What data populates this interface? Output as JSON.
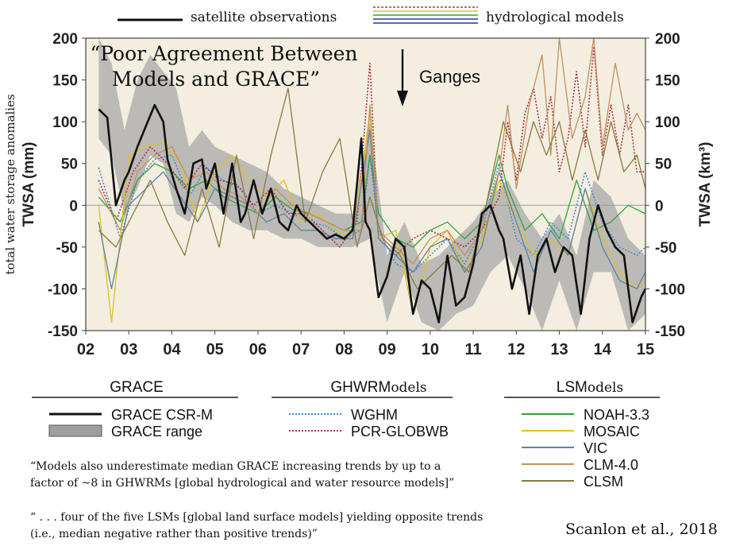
{
  "top_legend": {
    "satellite_label": "satellite observations",
    "models_label": "hydrological models",
    "models_colors": [
      "#b03040",
      "#e0c020",
      "#30a040",
      "#2040a0",
      "#303090"
    ]
  },
  "annotations": {
    "headline_line1": "“Poor Agreement Between",
    "headline_line2": "Models and GRACE”",
    "basin": "Ganges",
    "left_axis_outer": "total water storage anomalies",
    "citation": "Scanlon et al., 2018"
  },
  "legend": {
    "groups": [
      {
        "header": "GRACE",
        "suffix": "",
        "items": [
          {
            "label": "GRACE CSR-M",
            "color": "#111111",
            "style": "solid-thick"
          },
          {
            "label": "GRACE range",
            "color": "#a0a0a0",
            "style": "band"
          }
        ]
      },
      {
        "header": "GHWRM",
        "suffix": "odels",
        "items": [
          {
            "label": "WGHM",
            "color": "#3a8ad0",
            "style": "dotted"
          },
          {
            "label": "PCR-GLOBWB",
            "color": "#b03040",
            "style": "dotted"
          }
        ]
      },
      {
        "header": "LSM",
        "suffix": "odels",
        "items": [
          {
            "label": "NOAH-3.3",
            "color": "#30a040",
            "style": "solid"
          },
          {
            "label": "MOSAIC",
            "color": "#e0c020",
            "style": "solid"
          },
          {
            "label": "VIC",
            "color": "#6080a0",
            "style": "solid"
          },
          {
            "label": "CLM-4.0",
            "color": "#c09060",
            "style": "solid"
          },
          {
            "label": "CLSM",
            "color": "#8a7a40",
            "style": "solid"
          }
        ]
      }
    ]
  },
  "quotes": {
    "q1_line1": "“Models also underestimate median GRACE increasing trends by up to a",
    "q1_line2": "factor of ~8 in GHWRMs [global hydrological and water resource models]”",
    "q2_line1": "“ . . . four of the five LSMs [global land surface models] yielding opposite trends",
    "q2_line2": "(i.e., median negative rather than positive trends)”"
  },
  "chart_data": {
    "type": "line",
    "xlabel_ticks": [
      "02",
      "03",
      "04",
      "05",
      "06",
      "07",
      "08",
      "09",
      "10",
      "11",
      "12",
      "13",
      "14",
      "15"
    ],
    "x_range": [
      2002,
      2015
    ],
    "ylabel": "TWSA (mm)",
    "ylabel_right": "TWSA (km³)",
    "ylim": [
      -150,
      200
    ],
    "yticks": [
      200,
      150,
      100,
      50,
      0,
      -50,
      -100,
      -150
    ],
    "plot_background": "#f3eee0",
    "series": [
      {
        "name": "GRACE CSR-M",
        "color": "#111111",
        "width": 2.6,
        "x": [
          2002.3,
          2002.5,
          2002.7,
          2002.9,
          2003.0,
          2003.2,
          2003.4,
          2003.6,
          2003.8,
          2003.9,
          2004.1,
          2004.3,
          2004.5,
          2004.7,
          2004.8,
          2005.0,
          2005.2,
          2005.4,
          2005.6,
          2005.7,
          2005.9,
          2006.1,
          2006.3,
          2006.5,
          2006.7,
          2006.9,
          2007.0,
          2007.2,
          2007.4,
          2007.6,
          2007.8,
          2008.0,
          2008.2,
          2008.4,
          2008.5,
          2008.6,
          2008.8,
          2009.0,
          2009.2,
          2009.4,
          2009.6,
          2009.8,
          2010.0,
          2010.2,
          2010.4,
          2010.6,
          2010.8,
          2011.0,
          2011.2,
          2011.4,
          2011.6,
          2011.7,
          2011.9,
          2012.1,
          2012.3,
          2012.5,
          2012.7,
          2012.9,
          2013.1,
          2013.3,
          2013.5,
          2013.7,
          2013.9,
          2014.1,
          2014.3,
          2014.5,
          2014.7,
          2014.9,
          2015.0
        ],
        "y": [
          115,
          105,
          0,
          30,
          40,
          70,
          95,
          120,
          100,
          55,
          20,
          -10,
          50,
          55,
          20,
          50,
          -10,
          50,
          -20,
          -10,
          30,
          -10,
          20,
          -20,
          -30,
          0,
          -10,
          -20,
          -30,
          -40,
          -35,
          -40,
          -30,
          80,
          -20,
          -30,
          -110,
          -85,
          -40,
          -50,
          -130,
          -90,
          -100,
          -140,
          -60,
          -120,
          -110,
          -70,
          -10,
          0,
          -30,
          -40,
          -100,
          -60,
          -130,
          -60,
          -40,
          -80,
          -50,
          -60,
          -130,
          -40,
          0,
          -30,
          -50,
          -60,
          -140,
          -110,
          -100
        ]
      },
      {
        "name": "WGHM",
        "color": "#3a8ad0",
        "width": 1.5,
        "dash": "2,2",
        "x": [
          2002.3,
          2002.8,
          2003.2,
          2003.6,
          2004.0,
          2004.4,
          2004.8,
          2005.2,
          2005.6,
          2006.0,
          2006.4,
          2006.8,
          2007.2,
          2007.6,
          2008.0,
          2008.4,
          2008.6,
          2008.8,
          2009.2,
          2009.6,
          2010.0,
          2010.4,
          2010.8,
          2011.2,
          2011.6,
          2012.0,
          2012.4,
          2012.8,
          2013.2,
          2013.6,
          2014.0,
          2014.4,
          2014.8,
          2015.0
        ],
        "y": [
          45,
          -40,
          30,
          55,
          60,
          10,
          45,
          30,
          20,
          -10,
          0,
          -10,
          -20,
          -25,
          -40,
          -30,
          60,
          -30,
          -70,
          -80,
          -60,
          -40,
          -70,
          -30,
          50,
          -40,
          -60,
          -20,
          -40,
          40,
          -20,
          -50,
          -60,
          -50
        ]
      },
      {
        "name": "PCR-GLOBWB",
        "color": "#b03040",
        "width": 1.6,
        "dash": "2,2",
        "x": [
          2002.3,
          2002.7,
          2003.1,
          2003.5,
          2003.9,
          2004.3,
          2004.7,
          2005.1,
          2005.5,
          2005.9,
          2006.3,
          2006.7,
          2007.1,
          2007.5,
          2007.9,
          2008.3,
          2008.6,
          2008.8,
          2009.2,
          2009.6,
          2010.0,
          2010.4,
          2010.8,
          2011.2,
          2011.6,
          2011.8,
          2012.0,
          2012.2,
          2012.4,
          2012.6,
          2012.8,
          2013.0,
          2013.2,
          2013.4,
          2013.6,
          2013.8,
          2014.0,
          2014.2,
          2014.4,
          2014.6,
          2014.8,
          2015.0
        ],
        "y": [
          30,
          -20,
          40,
          70,
          50,
          20,
          50,
          30,
          25,
          0,
          20,
          -10,
          -10,
          -30,
          -50,
          -20,
          170,
          -40,
          -60,
          -40,
          -30,
          -40,
          -50,
          -30,
          10,
          100,
          30,
          110,
          140,
          80,
          130,
          40,
          80,
          160,
          70,
          190,
          60,
          120,
          60,
          120,
          40,
          40
        ]
      },
      {
        "name": "NOAH-3.3",
        "color": "#30a040",
        "width": 1.3,
        "x": [
          2002.3,
          2002.8,
          2003.2,
          2003.6,
          2004.0,
          2004.4,
          2004.8,
          2005.2,
          2005.6,
          2006.0,
          2006.4,
          2006.8,
          2007.2,
          2007.6,
          2008.0,
          2008.4,
          2008.6,
          2008.8,
          2009.2,
          2009.6,
          2010.0,
          2010.4,
          2010.8,
          2011.2,
          2011.6,
          2011.8,
          2012.2,
          2012.6,
          2013.0,
          2013.4,
          2013.8,
          2014.2,
          2014.6,
          2015.0
        ],
        "y": [
          10,
          -20,
          30,
          50,
          40,
          20,
          30,
          10,
          0,
          -10,
          10,
          -5,
          -10,
          -20,
          -30,
          -20,
          60,
          -10,
          -40,
          -50,
          -30,
          -20,
          -40,
          -20,
          60,
          20,
          -30,
          -10,
          -40,
          30,
          -30,
          -20,
          0,
          -10
        ]
      },
      {
        "name": "MOSAIC",
        "color": "#e0c020",
        "width": 1.3,
        "x": [
          2002.3,
          2002.6,
          2003.0,
          2003.4,
          2003.8,
          2004.2,
          2004.6,
          2005.0,
          2005.4,
          2005.8,
          2006.2,
          2006.6,
          2007.0,
          2007.4,
          2007.8,
          2008.2,
          2008.6,
          2008.8,
          2009.2,
          2009.6,
          2010.0,
          2010.4,
          2010.8,
          2011.2,
          2011.6,
          2012.0,
          2012.4,
          2012.8,
          2013.2,
          2013.6,
          2014.0,
          2014.4,
          2014.8,
          2015.0
        ],
        "y": [
          0,
          -140,
          60,
          70,
          75,
          50,
          -20,
          40,
          60,
          30,
          10,
          30,
          -20,
          -10,
          -30,
          -40,
          110,
          -40,
          -30,
          -130,
          -50,
          -30,
          -80,
          -40,
          30,
          -20,
          -60,
          -40,
          -60,
          20,
          -40,
          -80,
          -100,
          -90
        ]
      },
      {
        "name": "VIC",
        "color": "#6080a0",
        "width": 1.3,
        "x": [
          2002.3,
          2002.6,
          2003.0,
          2003.4,
          2003.8,
          2004.2,
          2004.6,
          2005.0,
          2005.4,
          2005.8,
          2006.2,
          2006.6,
          2007.0,
          2007.4,
          2007.8,
          2008.2,
          2008.6,
          2008.8,
          2009.2,
          2009.6,
          2010.0,
          2010.4,
          2010.8,
          2011.2,
          2011.6,
          2012.0,
          2012.4,
          2012.8,
          2013.2,
          2013.6,
          2014.0,
          2014.4,
          2014.8,
          2015.0
        ],
        "y": [
          -20,
          -100,
          0,
          20,
          40,
          10,
          -20,
          20,
          10,
          0,
          -20,
          -10,
          -30,
          -30,
          -40,
          -40,
          90,
          -40,
          -60,
          -80,
          -50,
          -40,
          -80,
          -50,
          40,
          -20,
          -80,
          -30,
          -60,
          20,
          -50,
          -90,
          -100,
          -80
        ]
      },
      {
        "name": "CLM-4.0",
        "color": "#c09060",
        "width": 1.3,
        "x": [
          2002.3,
          2002.8,
          2003.2,
          2003.6,
          2004.0,
          2004.4,
          2004.8,
          2005.2,
          2005.6,
          2006.0,
          2006.4,
          2006.8,
          2007.2,
          2007.6,
          2008.0,
          2008.4,
          2008.6,
          2008.8,
          2009.2,
          2009.6,
          2010.0,
          2010.4,
          2010.8,
          2011.2,
          2011.6,
          2011.8,
          2012.0,
          2012.3,
          2012.6,
          2012.8,
          2013.0,
          2013.3,
          2013.6,
          2013.8,
          2014.0,
          2014.3,
          2014.6,
          2014.8,
          2015.0
        ],
        "y": [
          20,
          -30,
          40,
          60,
          70,
          30,
          40,
          20,
          10,
          -10,
          20,
          0,
          -10,
          -20,
          -30,
          -30,
          120,
          -30,
          -50,
          -70,
          -40,
          -30,
          -60,
          -30,
          40,
          120,
          20,
          120,
          180,
          60,
          200,
          80,
          130,
          200,
          70,
          170,
          90,
          110,
          90
        ]
      },
      {
        "name": "CLSM",
        "color": "#8a7a40",
        "width": 1.3,
        "x": [
          2002.3,
          2002.7,
          2003.1,
          2003.5,
          2003.9,
          2004.3,
          2004.7,
          2005.1,
          2005.5,
          2005.9,
          2006.3,
          2006.7,
          2007.1,
          2007.5,
          2007.9,
          2008.3,
          2008.6,
          2008.9,
          2009.3,
          2009.7,
          2010.1,
          2010.5,
          2010.9,
          2011.3,
          2011.7,
          2012.1,
          2012.4,
          2012.7,
          2013.0,
          2013.3,
          2013.6,
          2013.9,
          2014.2,
          2014.5,
          2014.8,
          2015.0
        ],
        "y": [
          -30,
          -50,
          -10,
          30,
          -20,
          -60,
          20,
          -50,
          60,
          -40,
          60,
          140,
          -20,
          40,
          80,
          -50,
          10,
          -40,
          -60,
          -100,
          -80,
          -60,
          -80,
          0,
          100,
          40,
          100,
          60,
          100,
          30,
          90,
          30,
          100,
          40,
          60,
          20
        ]
      }
    ],
    "grace_range": {
      "x": [
        2002.3,
        2002.6,
        2002.9,
        2003.2,
        2003.5,
        2003.8,
        2004.1,
        2004.4,
        2004.7,
        2005.0,
        2005.4,
        2005.8,
        2006.2,
        2006.6,
        2007.0,
        2007.4,
        2007.8,
        2008.2,
        2008.6,
        2009.0,
        2009.4,
        2009.8,
        2010.2,
        2010.6,
        2011.0,
        2011.4,
        2011.8,
        2012.2,
        2012.6,
        2013.0,
        2013.4,
        2013.8,
        2014.2,
        2014.6,
        2015.0
      ],
      "upper": [
        200,
        170,
        90,
        150,
        180,
        160,
        140,
        70,
        90,
        70,
        60,
        50,
        40,
        20,
        10,
        0,
        -10,
        -10,
        100,
        -60,
        -20,
        -70,
        -60,
        -40,
        -20,
        10,
        30,
        -10,
        -40,
        -10,
        -60,
        30,
        10,
        -40,
        -60
      ],
      "lower": [
        80,
        60,
        -10,
        20,
        60,
        50,
        -10,
        -20,
        10,
        0,
        -20,
        -30,
        -30,
        -40,
        -40,
        -50,
        -50,
        -50,
        -40,
        -140,
        -80,
        -140,
        -150,
        -130,
        -120,
        -80,
        -60,
        -100,
        -150,
        -90,
        -150,
        -80,
        -80,
        -150,
        -130
      ]
    }
  }
}
